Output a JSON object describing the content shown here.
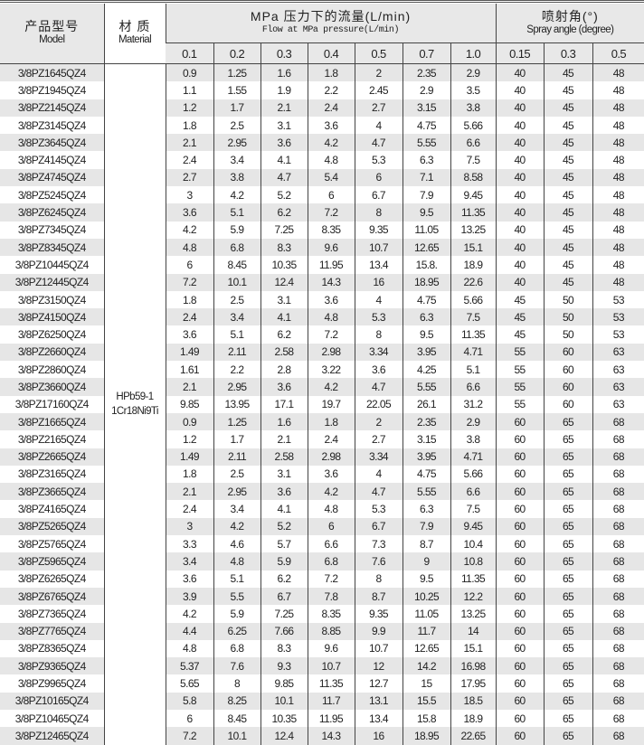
{
  "header": {
    "model_cn": "产品型号",
    "model_en": "Model",
    "material_cn": "材 质",
    "material_en": "Material",
    "flow_cn": "MPa  压力下的流量(L/min)",
    "flow_en": "Flow at MPa pressure(L/min)",
    "angle_cn": "喷射角(°)",
    "angle_en": "Spray angle (degree)",
    "pressures": [
      "0.1",
      "0.2",
      "0.3",
      "0.4",
      "0.5",
      "0.7",
      "1.0"
    ],
    "angle_pressures": [
      "0.15",
      "0.3",
      "0.5"
    ]
  },
  "material": {
    "line1": "HPb59-1",
    "line2": "1Cr18Ni9Ti"
  },
  "rows": [
    [
      "3/8PZ1645QZ4",
      "0.9",
      "1.25",
      "1.6",
      "1.8",
      "2",
      "2.35",
      "2.9",
      "40",
      "45",
      "48"
    ],
    [
      "3/8PZ1945QZ4",
      "1.1",
      "1.55",
      "1.9",
      "2.2",
      "2.45",
      "2.9",
      "3.5",
      "40",
      "45",
      "48"
    ],
    [
      "3/8PZ2145QZ4",
      "1.2",
      "1.7",
      "2.1",
      "2.4",
      "2.7",
      "3.15",
      "3.8",
      "40",
      "45",
      "48"
    ],
    [
      "3/8PZ3145QZ4",
      "1.8",
      "2.5",
      "3.1",
      "3.6",
      "4",
      "4.75",
      "5.66",
      "40",
      "45",
      "48"
    ],
    [
      "3/8PZ3645QZ4",
      "2.1",
      "2.95",
      "3.6",
      "4.2",
      "4.7",
      "5.55",
      "6.6",
      "40",
      "45",
      "48"
    ],
    [
      "3/8PZ4145QZ4",
      "2.4",
      "3.4",
      "4.1",
      "4.8",
      "5.3",
      "6.3",
      "7.5",
      "40",
      "45",
      "48"
    ],
    [
      "3/8PZ4745QZ4",
      "2.7",
      "3.8",
      "4.7",
      "5.4",
      "6",
      "7.1",
      "8.58",
      "40",
      "45",
      "48"
    ],
    [
      "3/8PZ5245QZ4",
      "3",
      "4.2",
      "5.2",
      "6",
      "6.7",
      "7.9",
      "9.45",
      "40",
      "45",
      "48"
    ],
    [
      "3/8PZ6245QZ4",
      "3.6",
      "5.1",
      "6.2",
      "7.2",
      "8",
      "9.5",
      "11.35",
      "40",
      "45",
      "48"
    ],
    [
      "3/8PZ7345QZ4",
      "4.2",
      "5.9",
      "7.25",
      "8.35",
      "9.35",
      "11.05",
      "13.25",
      "40",
      "45",
      "48"
    ],
    [
      "3/8PZ8345QZ4",
      "4.8",
      "6.8",
      "8.3",
      "9.6",
      "10.7",
      "12.65",
      "15.1",
      "40",
      "45",
      "48"
    ],
    [
      "3/8PZ10445QZ4",
      "6",
      "8.45",
      "10.35",
      "11.95",
      "13.4",
      "15.8.",
      "18.9",
      "40",
      "45",
      "48"
    ],
    [
      "3/8PZ12445QZ4",
      "7.2",
      "10.1",
      "12.4",
      "14.3",
      "16",
      "18.95",
      "22.6",
      "40",
      "45",
      "48"
    ],
    [
      "3/8PZ3150QZ4",
      "1.8",
      "2.5",
      "3.1",
      "3.6",
      "4",
      "4.75",
      "5.66",
      "45",
      "50",
      "53"
    ],
    [
      "3/8PZ4150QZ4",
      "2.4",
      "3.4",
      "4.1",
      "4.8",
      "5.3",
      "6.3",
      "7.5",
      "45",
      "50",
      "53"
    ],
    [
      "3/8PZ6250QZ4",
      "3.6",
      "5.1",
      "6.2",
      "7.2",
      "8",
      "9.5",
      "11.35",
      "45",
      "50",
      "53"
    ],
    [
      "3/8PZ2660QZ4",
      "1.49",
      "2.11",
      "2.58",
      "2.98",
      "3.34",
      "3.95",
      "4.71",
      "55",
      "60",
      "63"
    ],
    [
      "3/8PZ2860QZ4",
      "1.61",
      "2.2",
      "2.8",
      "3.22",
      "3.6",
      "4.25",
      "5.1",
      "55",
      "60",
      "63"
    ],
    [
      "3/8PZ3660QZ4",
      "2.1",
      "2.95",
      "3.6",
      "4.2",
      "4.7",
      "5.55",
      "6.6",
      "55",
      "60",
      "63"
    ],
    [
      "3/8PZ17160QZ4",
      "9.85",
      "13.95",
      "17.1",
      "19.7",
      "22.05",
      "26.1",
      "31.2",
      "55",
      "60",
      "63"
    ],
    [
      "3/8PZ1665QZ4",
      "0.9",
      "1.25",
      "1.6",
      "1.8",
      "2",
      "2.35",
      "2.9",
      "60",
      "65",
      "68"
    ],
    [
      "3/8PZ2165QZ4",
      "1.2",
      "1.7",
      "2.1",
      "2.4",
      "2.7",
      "3.15",
      "3.8",
      "60",
      "65",
      "68"
    ],
    [
      "3/8PZ2665QZ4",
      "1.49",
      "2.11",
      "2.58",
      "2.98",
      "3.34",
      "3.95",
      "4.71",
      "60",
      "65",
      "68"
    ],
    [
      "3/8PZ3165QZ4",
      "1.8",
      "2.5",
      "3.1",
      "3.6",
      "4",
      "4.75",
      "5.66",
      "60",
      "65",
      "68"
    ],
    [
      "3/8PZ3665QZ4",
      "2.1",
      "2.95",
      "3.6",
      "4.2",
      "4.7",
      "5.55",
      "6.6",
      "60",
      "65",
      "68"
    ],
    [
      "3/8PZ4165QZ4",
      "2.4",
      "3.4",
      "4.1",
      "4.8",
      "5.3",
      "6.3",
      "7.5",
      "60",
      "65",
      "68"
    ],
    [
      "3/8PZ5265QZ4",
      "3",
      "4.2",
      "5.2",
      "6",
      "6.7",
      "7.9",
      "9.45",
      "60",
      "65",
      "68"
    ],
    [
      "3/8PZ5765QZ4",
      "3.3",
      "4.6",
      "5.7",
      "6.6",
      "7.3",
      "8.7",
      "10.4",
      "60",
      "65",
      "68"
    ],
    [
      "3/8PZ5965QZ4",
      "3.4",
      "4.8",
      "5.9",
      "6.8",
      "7.6",
      "9",
      "10.8",
      "60",
      "65",
      "68"
    ],
    [
      "3/8PZ6265QZ4",
      "3.6",
      "5.1",
      "6.2",
      "7.2",
      "8",
      "9.5",
      "11.35",
      "60",
      "65",
      "68"
    ],
    [
      "3/8PZ6765QZ4",
      "3.9",
      "5.5",
      "6.7",
      "7.8",
      "8.7",
      "10.25",
      "12.2",
      "60",
      "65",
      "68"
    ],
    [
      "3/8PZ7365QZ4",
      "4.2",
      "5.9",
      "7.25",
      "8.35",
      "9.35",
      "11.05",
      "13.25",
      "60",
      "65",
      "68"
    ],
    [
      "3/8PZ7765QZ4",
      "4.4",
      "6.25",
      "7.66",
      "8.85",
      "9.9",
      "11.7",
      "14",
      "60",
      "65",
      "68"
    ],
    [
      "3/8PZ8365QZ4",
      "4.8",
      "6.8",
      "8.3",
      "9.6",
      "10.7",
      "12.65",
      "15.1",
      "60",
      "65",
      "68"
    ],
    [
      "3/8PZ9365QZ4",
      "5.37",
      "7.6",
      "9.3",
      "10.7",
      "12",
      "14.2",
      "16.98",
      "60",
      "65",
      "68"
    ],
    [
      "3/8PZ9965QZ4",
      "5.65",
      "8",
      "9.85",
      "11.35",
      "12.7",
      "15",
      "17.95",
      "60",
      "65",
      "68"
    ],
    [
      "3/8PZ10165QZ4",
      "5.8",
      "8.25",
      "10.1",
      "11.7",
      "13.1",
      "15.5",
      "18.5",
      "60",
      "65",
      "68"
    ],
    [
      "3/8PZ10465QZ4",
      "6",
      "8.45",
      "10.35",
      "11.95",
      "13.4",
      "15.8",
      "18.9",
      "60",
      "65",
      "68"
    ],
    [
      "3/8PZ12465QZ4",
      "7.2",
      "10.1",
      "12.4",
      "14.3",
      "16",
      "18.95",
      "22.65",
      "60",
      "65",
      "68"
    ]
  ]
}
